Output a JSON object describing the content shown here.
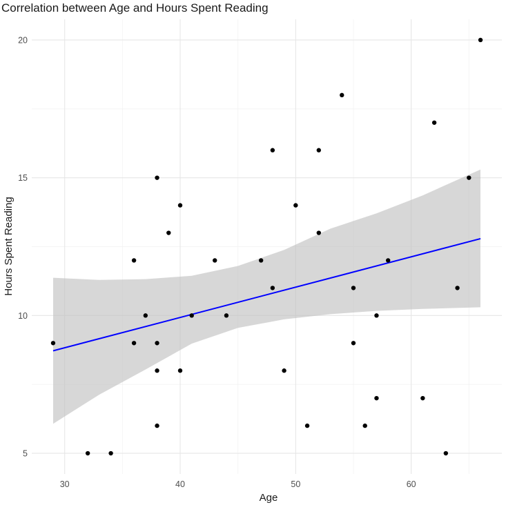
{
  "chart_data": {
    "type": "scatter",
    "title": "Correlation between Age and Hours Spent Reading",
    "xlabel": "Age",
    "ylabel": "Hours Spent Reading",
    "xlim": [
      27.15,
      67.85
    ],
    "ylim": [
      4.25,
      20.75
    ],
    "x_ticks": [
      30,
      40,
      50,
      60
    ],
    "y_ticks": [
      5,
      10,
      15,
      20
    ],
    "grid": true,
    "points": [
      {
        "x": 29,
        "y": 9
      },
      {
        "x": 32,
        "y": 5
      },
      {
        "x": 34,
        "y": 5
      },
      {
        "x": 36,
        "y": 12
      },
      {
        "x": 36,
        "y": 9
      },
      {
        "x": 37,
        "y": 10
      },
      {
        "x": 38,
        "y": 15
      },
      {
        "x": 38,
        "y": 9
      },
      {
        "x": 38,
        "y": 8
      },
      {
        "x": 38,
        "y": 6
      },
      {
        "x": 39,
        "y": 13
      },
      {
        "x": 40,
        "y": 14
      },
      {
        "x": 40,
        "y": 8
      },
      {
        "x": 41,
        "y": 10
      },
      {
        "x": 43,
        "y": 12
      },
      {
        "x": 44,
        "y": 10
      },
      {
        "x": 47,
        "y": 12
      },
      {
        "x": 48,
        "y": 16
      },
      {
        "x": 48,
        "y": 11
      },
      {
        "x": 49,
        "y": 8
      },
      {
        "x": 50,
        "y": 14
      },
      {
        "x": 51,
        "y": 6
      },
      {
        "x": 52,
        "y": 16
      },
      {
        "x": 52,
        "y": 13
      },
      {
        "x": 54,
        "y": 18
      },
      {
        "x": 55,
        "y": 11
      },
      {
        "x": 55,
        "y": 9
      },
      {
        "x": 56,
        "y": 6
      },
      {
        "x": 57,
        "y": 10
      },
      {
        "x": 57,
        "y": 7
      },
      {
        "x": 58,
        "y": 12
      },
      {
        "x": 61,
        "y": 7
      },
      {
        "x": 62,
        "y": 17
      },
      {
        "x": 63,
        "y": 5
      },
      {
        "x": 64,
        "y": 11
      },
      {
        "x": 65,
        "y": 15
      },
      {
        "x": 66,
        "y": 20
      }
    ],
    "fit_line": {
      "type": "linear",
      "color": "#0000ff",
      "x": [
        29,
        66
      ],
      "y": [
        8.72,
        12.79
      ]
    },
    "confidence_band": {
      "color": "#bebebe",
      "x": [
        29,
        33,
        37,
        41,
        45,
        49,
        53,
        57,
        61,
        66
      ],
      "lower": [
        6.07,
        7.13,
        8.04,
        8.98,
        9.55,
        9.86,
        10.05,
        10.17,
        10.24,
        10.3
      ],
      "upper": [
        11.37,
        11.29,
        11.32,
        11.44,
        11.8,
        12.38,
        13.15,
        13.71,
        14.36,
        15.3
      ]
    }
  }
}
